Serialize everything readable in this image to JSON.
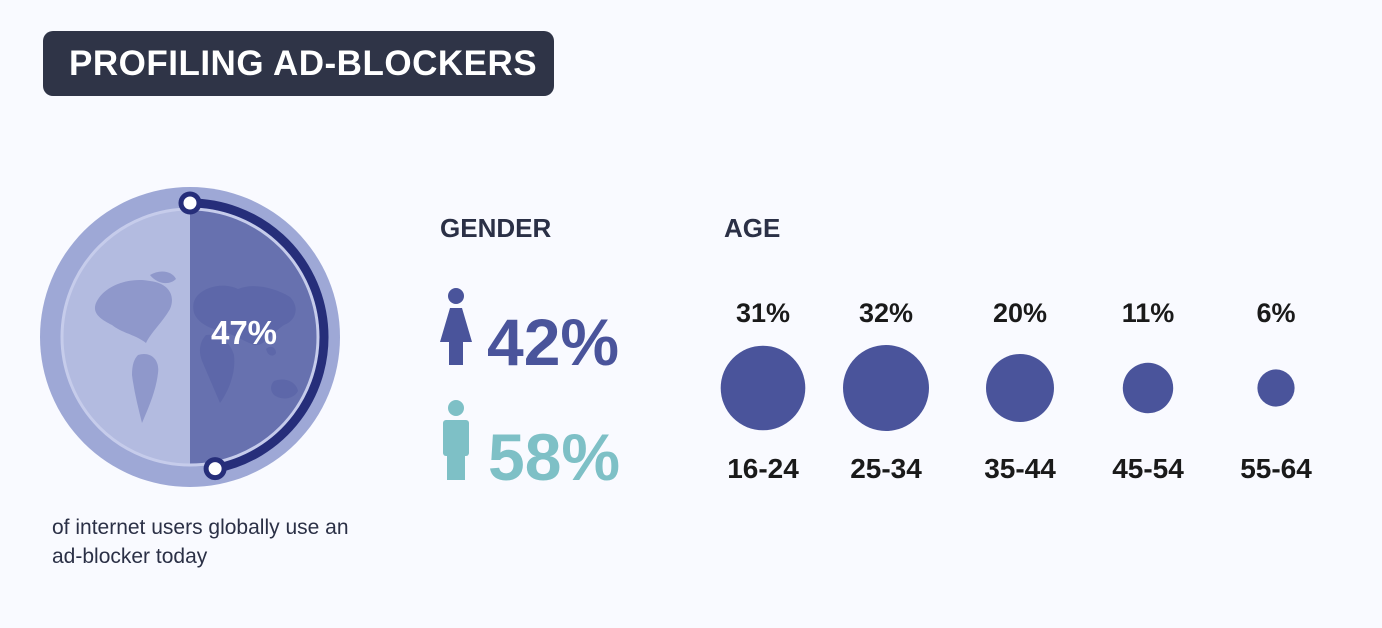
{
  "header": {
    "title": "PROFILING AD-BLOCKERS"
  },
  "globe": {
    "value_label": "47%",
    "share": 0.47,
    "caption": "of internet users globally use an ad-blocker today"
  },
  "colors": {
    "dark": "#2f3447",
    "primary": "#4a549b",
    "teal": "#7ec0c6",
    "ring_outer": "#9ea8d6",
    "ring_inner": "#b5bde2",
    "arc": "#262e7a"
  },
  "chart_data": [
    {
      "type": "table",
      "title": "GENDER",
      "categories": [
        "Female",
        "Male"
      ],
      "labels": [
        "42%",
        "58%"
      ],
      "values": [
        42,
        58
      ]
    },
    {
      "type": "scatter",
      "title": "AGE",
      "categories": [
        "16-24",
        "25-34",
        "35-44",
        "45-54",
        "55-64"
      ],
      "labels": [
        "31%",
        "32%",
        "20%",
        "11%",
        "6%"
      ],
      "values": [
        31,
        32,
        20,
        11,
        6
      ]
    }
  ]
}
